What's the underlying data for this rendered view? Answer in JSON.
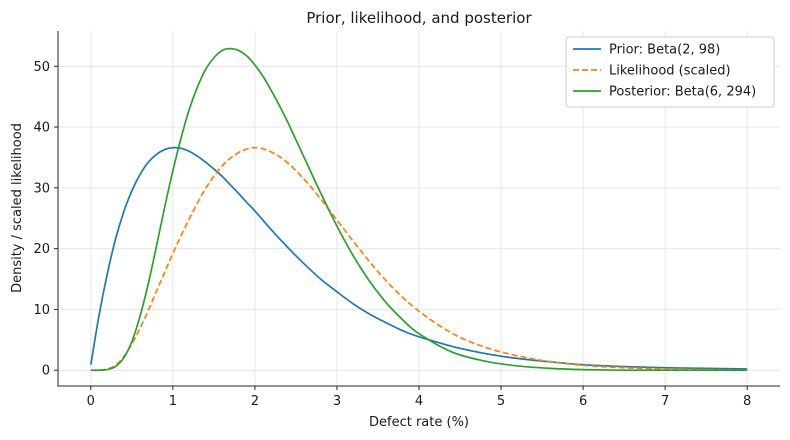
{
  "chart_data": {
    "type": "line",
    "title": "Prior, likelihood, and posterior",
    "xlabel": "Defect rate (%)",
    "ylabel": "Density / scaled likelihood",
    "xlim": [
      -0.4,
      8.4
    ],
    "ylim": [
      -2.6,
      55.8
    ],
    "xticks": [
      0,
      1,
      2,
      3,
      4,
      5,
      6,
      7,
      8
    ],
    "xtick_labels": [
      "0",
      "1",
      "2",
      "3",
      "4",
      "5",
      "6",
      "7",
      "8"
    ],
    "yticks": [
      0,
      10,
      20,
      30,
      40,
      50
    ],
    "ytick_labels": [
      "0",
      "10",
      "20",
      "30",
      "40",
      "50"
    ],
    "grid": true,
    "legend_position": "top-right",
    "series": [
      {
        "name": "Prior: Beta(2, 98)",
        "color": "#1f77b4",
        "linestyle": "solid",
        "x": [
          0,
          0.1,
          0.2,
          0.3,
          0.4,
          0.5,
          0.6,
          0.7,
          0.8,
          0.9,
          1.0,
          1.1,
          1.2,
          1.3,
          1.4,
          1.5,
          1.6,
          1.7,
          1.8,
          1.9,
          2.0,
          2.2,
          2.4,
          2.6,
          2.8,
          3.0,
          3.2,
          3.4,
          3.6,
          3.8,
          4.0,
          4.5,
          5.0,
          5.5,
          6.0,
          6.5,
          7.0,
          7.5,
          8.0
        ],
        "y": [
          0.9,
          9.0,
          15.8,
          21.5,
          26.0,
          29.5,
          32.2,
          34.2,
          35.5,
          36.3,
          36.6,
          36.5,
          36.0,
          35.2,
          34.2,
          33.1,
          31.9,
          30.5,
          29.1,
          27.6,
          26.2,
          23.1,
          20.2,
          17.5,
          15.0,
          12.9,
          10.9,
          9.2,
          7.8,
          6.5,
          5.5,
          3.6,
          2.3,
          1.5,
          0.9,
          0.6,
          0.4,
          0.3,
          0.2
        ]
      },
      {
        "name": "Likelihood (scaled)",
        "color": "#ff7f0e",
        "linestyle": "dashed",
        "x": [
          0,
          0.1,
          0.2,
          0.3,
          0.4,
          0.5,
          0.6,
          0.7,
          0.8,
          0.9,
          1.0,
          1.2,
          1.4,
          1.6,
          1.8,
          2.0,
          2.2,
          2.4,
          2.6,
          2.8,
          3.0,
          3.2,
          3.4,
          3.6,
          3.8,
          4.0,
          4.3,
          4.6,
          5.0,
          5.5,
          6.0,
          6.5,
          7.0,
          7.5,
          8.0
        ],
        "y": [
          0,
          0.0,
          0.2,
          0.8,
          2.2,
          4.3,
          6.9,
          9.8,
          13.0,
          16.1,
          19.2,
          24.9,
          29.9,
          33.6,
          35.8,
          36.6,
          35.9,
          34.1,
          31.4,
          28.2,
          24.7,
          21.2,
          17.8,
          14.7,
          12.0,
          9.7,
          6.9,
          4.8,
          3.0,
          1.6,
          0.8,
          0.4,
          0.2,
          0.1,
          0.0
        ]
      },
      {
        "name": "Posterior: Beta(6, 294)",
        "color": "#2ca02c",
        "linestyle": "solid",
        "x": [
          0,
          0.1,
          0.2,
          0.3,
          0.4,
          0.5,
          0.6,
          0.7,
          0.8,
          0.9,
          1.0,
          1.1,
          1.2,
          1.3,
          1.4,
          1.5,
          1.6,
          1.7,
          1.8,
          1.9,
          2.0,
          2.1,
          2.2,
          2.3,
          2.4,
          2.5,
          2.6,
          2.8,
          3.0,
          3.2,
          3.4,
          3.6,
          3.8,
          4.0,
          4.4,
          4.8,
          5.2,
          5.6,
          6.0,
          6.5,
          7.0,
          7.5,
          8.0
        ],
        "y": [
          0,
          0.0,
          0.1,
          0.6,
          2.0,
          4.7,
          8.9,
          14.2,
          20.4,
          26.8,
          32.8,
          38.2,
          42.9,
          46.6,
          49.5,
          51.4,
          52.6,
          52.9,
          52.6,
          51.7,
          50.2,
          48.3,
          46.0,
          43.5,
          40.8,
          37.9,
          35.0,
          29.2,
          23.7,
          18.8,
          14.6,
          11.1,
          8.3,
          6.0,
          3.0,
          1.5,
          0.7,
          0.3,
          0.1,
          0.0,
          0.0,
          0.0,
          0.0
        ]
      }
    ]
  }
}
